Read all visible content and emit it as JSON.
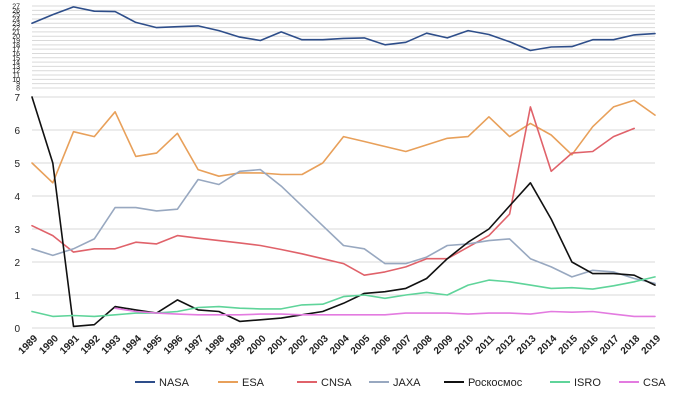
{
  "chart_data": {
    "type": "line",
    "title": "",
    "xlabel": "",
    "ylabel": "",
    "x": [
      "1989",
      "1990",
      "1991",
      "1992",
      "1993",
      "1994",
      "1995",
      "1996",
      "1997",
      "1998",
      "1999",
      "2000",
      "2001",
      "2002",
      "2003",
      "2004",
      "2005",
      "2006",
      "2007",
      "2008",
      "2009",
      "2010",
      "2011",
      "2012",
      "2013",
      "2014",
      "2015",
      "2016",
      "2017",
      "2018",
      "2019"
    ],
    "ylim_main": [
      0,
      7
    ],
    "yticks_main": [
      "0",
      "1",
      "2",
      "3",
      "4",
      "5",
      "6",
      "7"
    ],
    "ylim_top": [
      8,
      27
    ],
    "yticks_top": [
      "8",
      "9",
      "10",
      "11",
      "12",
      "13",
      "14",
      "15",
      "16",
      "17",
      "18",
      "19",
      "20",
      "21",
      "22",
      "23",
      "24",
      "25",
      "26",
      "27"
    ],
    "grid": true,
    "legend_position": "bottom",
    "series": [
      {
        "name": "NASA",
        "color": "#2e4e8a",
        "axis": "top",
        "values": [
          23.0,
          25.0,
          26.8,
          25.8,
          25.7,
          23.2,
          22.0,
          22.2,
          22.4,
          21.3,
          19.8,
          19.0,
          21.0,
          19.2,
          19.2,
          19.5,
          19.6,
          18.0,
          18.6,
          20.7,
          19.6,
          21.3,
          20.4,
          18.7,
          16.7,
          17.5,
          17.6,
          19.2,
          19.2,
          20.3,
          20.6
        ]
      },
      {
        "name": "ESA",
        "color": "#e8a05a",
        "axis": "main",
        "values": [
          5.0,
          4.4,
          5.95,
          5.8,
          6.55,
          5.2,
          5.3,
          5.9,
          4.8,
          4.6,
          4.7,
          4.7,
          4.65,
          4.65,
          5.0,
          5.8,
          5.65,
          5.5,
          5.35,
          5.55,
          5.75,
          5.8,
          6.4,
          5.8,
          6.2,
          5.85,
          5.25,
          6.1,
          6.7,
          6.9,
          6.45
        ]
      },
      {
        "name": "CNSA",
        "color": "#e0626a",
        "axis": "main",
        "values": [
          3.1,
          2.8,
          2.3,
          2.4,
          2.4,
          2.6,
          2.55,
          2.8,
          2.72,
          2.65,
          2.58,
          2.5,
          2.38,
          2.25,
          2.1,
          1.95,
          1.6,
          1.7,
          1.85,
          2.1,
          2.1,
          2.45,
          2.8,
          3.45,
          6.7,
          4.75,
          5.3,
          5.35,
          5.8,
          6.05,
          null
        ]
      },
      {
        "name": "JAXA",
        "color": "#98a8c0",
        "axis": "main",
        "values": [
          2.4,
          2.2,
          2.4,
          2.7,
          3.65,
          3.65,
          3.55,
          3.6,
          4.5,
          4.35,
          4.75,
          4.8,
          4.3,
          3.7,
          3.1,
          2.5,
          2.4,
          1.95,
          1.95,
          2.15,
          2.5,
          2.55,
          2.65,
          2.7,
          2.1,
          1.85,
          1.55,
          1.75,
          1.7,
          1.5,
          1.35
        ]
      },
      {
        "name": "Роскосмос",
        "color": "#111111",
        "axis": "main",
        "values": [
          7.0,
          5.0,
          0.05,
          0.1,
          0.65,
          0.55,
          0.45,
          0.85,
          0.55,
          0.5,
          0.2,
          0.25,
          0.3,
          0.4,
          0.5,
          0.75,
          1.05,
          1.1,
          1.2,
          1.5,
          2.1,
          2.6,
          3.0,
          3.7,
          4.4,
          3.3,
          2.0,
          1.65,
          1.65,
          1.6,
          1.3
        ]
      },
      {
        "name": "ISRO",
        "color": "#5fd49a",
        "axis": "main",
        "values": [
          0.5,
          0.35,
          0.38,
          0.35,
          0.4,
          0.45,
          0.45,
          0.5,
          0.62,
          0.65,
          0.6,
          0.58,
          0.58,
          0.7,
          0.72,
          0.95,
          1.0,
          0.9,
          1.0,
          1.08,
          1.0,
          1.3,
          1.45,
          1.4,
          1.3,
          1.2,
          1.22,
          1.18,
          1.28,
          1.4,
          1.55
        ]
      },
      {
        "name": "CSA",
        "color": "#e37be0",
        "axis": "main",
        "values": [
          null,
          null,
          null,
          null,
          0.6,
          0.5,
          0.45,
          0.42,
          0.4,
          0.4,
          0.4,
          0.42,
          0.42,
          0.4,
          0.4,
          0.4,
          0.4,
          0.4,
          0.45,
          0.45,
          0.45,
          0.42,
          0.45,
          0.45,
          0.42,
          0.5,
          0.48,
          0.5,
          0.42,
          0.35,
          0.35
        ]
      }
    ]
  }
}
